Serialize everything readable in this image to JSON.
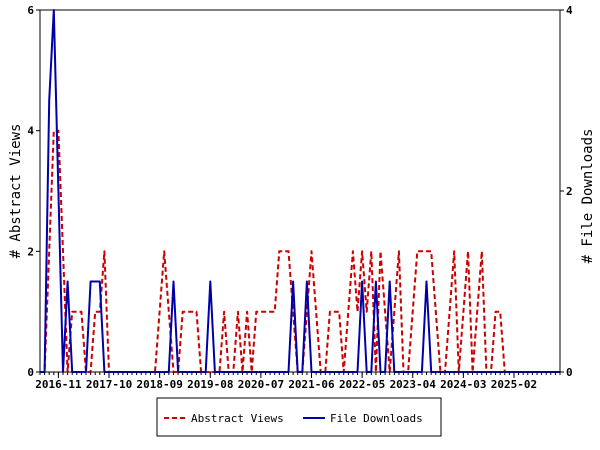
{
  "chart_data": {
    "type": "line",
    "x_tick_labels": [
      "2016-11",
      "2017-10",
      "2018-09",
      "2019-08",
      "2020-07",
      "2021-06",
      "2022-05",
      "2023-04",
      "2024-03",
      "2025-02"
    ],
    "x_range": [
      "2016-07",
      "2025-12"
    ],
    "y_left": {
      "label": "# Abstract Views",
      "ylim": [
        0,
        6
      ],
      "ticks": [
        "0",
        "2",
        "4",
        "6"
      ]
    },
    "y_right": {
      "label": "# File Downloads",
      "ylim": [
        0,
        4
      ],
      "ticks": [
        "0",
        "2",
        "4"
      ]
    },
    "grid": false,
    "legend_position": "bottom",
    "series": [
      {
        "name": "Abstract Views",
        "axis": "left",
        "color": "#cc0000",
        "style": "dashed",
        "points": [
          [
            "2016-07",
            0
          ],
          [
            "2016-08",
            0
          ],
          [
            "2016-09",
            2
          ],
          [
            "2016-10",
            4
          ],
          [
            "2016-11",
            4
          ],
          [
            "2016-12",
            2
          ],
          [
            "2017-01",
            0
          ],
          [
            "2017-02",
            1
          ],
          [
            "2017-03",
            1
          ],
          [
            "2017-04",
            1
          ],
          [
            "2017-05",
            0
          ],
          [
            "2017-06",
            0
          ],
          [
            "2017-07",
            1
          ],
          [
            "2017-08",
            1
          ],
          [
            "2017-09",
            2
          ],
          [
            "2017-10",
            0
          ],
          [
            "2017-11",
            0
          ],
          [
            "2017-12",
            0
          ],
          [
            "2018-01",
            0
          ],
          [
            "2018-02",
            0
          ],
          [
            "2018-03",
            0
          ],
          [
            "2018-04",
            0
          ],
          [
            "2018-05",
            0
          ],
          [
            "2018-06",
            0
          ],
          [
            "2018-07",
            0
          ],
          [
            "2018-08",
            0
          ],
          [
            "2018-09",
            1
          ],
          [
            "2018-10",
            2
          ],
          [
            "2018-11",
            1
          ],
          [
            "2018-12",
            0
          ],
          [
            "2019-01",
            0
          ],
          [
            "2019-02",
            1
          ],
          [
            "2019-03",
            1
          ],
          [
            "2019-04",
            1
          ],
          [
            "2019-05",
            1
          ],
          [
            "2019-06",
            0
          ],
          [
            "2019-07",
            0
          ],
          [
            "2019-08",
            0
          ],
          [
            "2019-09",
            0
          ],
          [
            "2019-10",
            0
          ],
          [
            "2019-11",
            1
          ],
          [
            "2019-12",
            0
          ],
          [
            "2020-01",
            0
          ],
          [
            "2020-02",
            1
          ],
          [
            "2020-03",
            0
          ],
          [
            "2020-04",
            1
          ],
          [
            "2020-05",
            0
          ],
          [
            "2020-06",
            1
          ],
          [
            "2020-07",
            1
          ],
          [
            "2020-08",
            1
          ],
          [
            "2020-09",
            1
          ],
          [
            "2020-10",
            1
          ],
          [
            "2020-11",
            2
          ],
          [
            "2020-12",
            2
          ],
          [
            "2021-01",
            2
          ],
          [
            "2021-02",
            1
          ],
          [
            "2021-03",
            0
          ],
          [
            "2021-04",
            0
          ],
          [
            "2021-05",
            1
          ],
          [
            "2021-06",
            2
          ],
          [
            "2021-07",
            1
          ],
          [
            "2021-08",
            0
          ],
          [
            "2021-09",
            0
          ],
          [
            "2021-10",
            1
          ],
          [
            "2021-11",
            1
          ],
          [
            "2021-12",
            1
          ],
          [
            "2022-01",
            0
          ],
          [
            "2022-02",
            1
          ],
          [
            "2022-03",
            2
          ],
          [
            "2022-04",
            1
          ],
          [
            "2022-05",
            2
          ],
          [
            "2022-06",
            1
          ],
          [
            "2022-07",
            2
          ],
          [
            "2022-08",
            0
          ],
          [
            "2022-09",
            2
          ],
          [
            "2022-10",
            1
          ],
          [
            "2022-11",
            0
          ],
          [
            "2022-12",
            1
          ],
          [
            "2023-01",
            2
          ],
          [
            "2023-02",
            0
          ],
          [
            "2023-03",
            0
          ],
          [
            "2023-04",
            1
          ],
          [
            "2023-05",
            2
          ],
          [
            "2023-06",
            2
          ],
          [
            "2023-07",
            2
          ],
          [
            "2023-08",
            2
          ],
          [
            "2023-09",
            1
          ],
          [
            "2023-10",
            0
          ],
          [
            "2023-11",
            0
          ],
          [
            "2023-12",
            1
          ],
          [
            "2024-01",
            2
          ],
          [
            "2024-02",
            0
          ],
          [
            "2024-03",
            1
          ],
          [
            "2024-04",
            2
          ],
          [
            "2024-05",
            0
          ],
          [
            "2024-06",
            1
          ],
          [
            "2024-07",
            2
          ],
          [
            "2024-08",
            0
          ],
          [
            "2024-09",
            0
          ],
          [
            "2024-10",
            1
          ],
          [
            "2024-11",
            1
          ],
          [
            "2024-12",
            0
          ],
          [
            "2025-01",
            0
          ],
          [
            "2025-02",
            0
          ],
          [
            "2025-03",
            0
          ],
          [
            "2025-04",
            0
          ],
          [
            "2025-05",
            0
          ],
          [
            "2025-06",
            0
          ],
          [
            "2025-07",
            0
          ],
          [
            "2025-08",
            0
          ],
          [
            "2025-09",
            0
          ],
          [
            "2025-10",
            0
          ],
          [
            "2025-11",
            0
          ],
          [
            "2025-12",
            0
          ]
        ]
      },
      {
        "name": "File Downloads",
        "axis": "right",
        "color": "#0000aa",
        "style": "solid",
        "points": [
          [
            "2016-07",
            0
          ],
          [
            "2016-08",
            0
          ],
          [
            "2016-09",
            3
          ],
          [
            "2016-10",
            4
          ],
          [
            "2016-11",
            2
          ],
          [
            "2016-12",
            0
          ],
          [
            "2017-01",
            1
          ],
          [
            "2017-02",
            0
          ],
          [
            "2017-03",
            0
          ],
          [
            "2017-04",
            0
          ],
          [
            "2017-05",
            0
          ],
          [
            "2017-06",
            1
          ],
          [
            "2017-07",
            1
          ],
          [
            "2017-08",
            1
          ],
          [
            "2017-09",
            0
          ],
          [
            "2017-10",
            0
          ],
          [
            "2017-11",
            0
          ],
          [
            "2017-12",
            0
          ],
          [
            "2018-01",
            0
          ],
          [
            "2018-02",
            0
          ],
          [
            "2018-03",
            0
          ],
          [
            "2018-04",
            0
          ],
          [
            "2018-05",
            0
          ],
          [
            "2018-06",
            0
          ],
          [
            "2018-07",
            0
          ],
          [
            "2018-08",
            0
          ],
          [
            "2018-09",
            0
          ],
          [
            "2018-10",
            0
          ],
          [
            "2018-11",
            0
          ],
          [
            "2018-12",
            1
          ],
          [
            "2019-01",
            0
          ],
          [
            "2019-02",
            0
          ],
          [
            "2019-03",
            0
          ],
          [
            "2019-04",
            0
          ],
          [
            "2019-05",
            0
          ],
          [
            "2019-06",
            0
          ],
          [
            "2019-07",
            0
          ],
          [
            "2019-08",
            1
          ],
          [
            "2019-09",
            0
          ],
          [
            "2019-10",
            0
          ],
          [
            "2020-01",
            0
          ],
          [
            "2020-02",
            0
          ],
          [
            "2020-03",
            0
          ],
          [
            "2020-04",
            0
          ],
          [
            "2020-05",
            0
          ],
          [
            "2020-06",
            0
          ],
          [
            "2020-07",
            0
          ],
          [
            "2020-08",
            0
          ],
          [
            "2020-09",
            0
          ],
          [
            "2020-10",
            0
          ],
          [
            "2020-11",
            0
          ],
          [
            "2020-12",
            0
          ],
          [
            "2021-01",
            0
          ],
          [
            "2021-02",
            1
          ],
          [
            "2021-03",
            0
          ],
          [
            "2021-04",
            0
          ],
          [
            "2021-05",
            1
          ],
          [
            "2021-06",
            0
          ],
          [
            "2021-07",
            0
          ],
          [
            "2021-08",
            0
          ],
          [
            "2021-09",
            0
          ],
          [
            "2021-10",
            0
          ],
          [
            "2021-11",
            0
          ],
          [
            "2021-12",
            0
          ],
          [
            "2022-01",
            0
          ],
          [
            "2022-02",
            0
          ],
          [
            "2022-03",
            0
          ],
          [
            "2022-04",
            0
          ],
          [
            "2022-05",
            1
          ],
          [
            "2022-06",
            0
          ],
          [
            "2022-07",
            0
          ],
          [
            "2022-08",
            1
          ],
          [
            "2022-09",
            0
          ],
          [
            "2022-10",
            0
          ],
          [
            "2022-11",
            1
          ],
          [
            "2022-12",
            0
          ],
          [
            "2023-01",
            0
          ],
          [
            "2023-02",
            0
          ],
          [
            "2023-03",
            0
          ],
          [
            "2023-04",
            0
          ],
          [
            "2023-05",
            0
          ],
          [
            "2023-06",
            0
          ],
          [
            "2023-07",
            1
          ],
          [
            "2023-08",
            0
          ],
          [
            "2023-09",
            0
          ],
          [
            "2023-10",
            0
          ],
          [
            "2023-11",
            0
          ],
          [
            "2023-12",
            0
          ],
          [
            "2024-01",
            0
          ],
          [
            "2024-02",
            0
          ],
          [
            "2024-03",
            0
          ],
          [
            "2024-04",
            0
          ],
          [
            "2024-05",
            0
          ],
          [
            "2024-06",
            0
          ],
          [
            "2024-07",
            0
          ],
          [
            "2024-08",
            0
          ],
          [
            "2024-09",
            0
          ],
          [
            "2024-10",
            0
          ],
          [
            "2024-11",
            0
          ],
          [
            "2024-12",
            0
          ],
          [
            "2025-01",
            0
          ],
          [
            "2025-02",
            0
          ],
          [
            "2025-03",
            0
          ],
          [
            "2025-04",
            0
          ],
          [
            "2025-05",
            0
          ],
          [
            "2025-06",
            0
          ],
          [
            "2025-07",
            0
          ],
          [
            "2025-08",
            0
          ],
          [
            "2025-09",
            0
          ],
          [
            "2025-10",
            0
          ],
          [
            "2025-11",
            0
          ],
          [
            "2025-12",
            0
          ]
        ]
      }
    ]
  }
}
